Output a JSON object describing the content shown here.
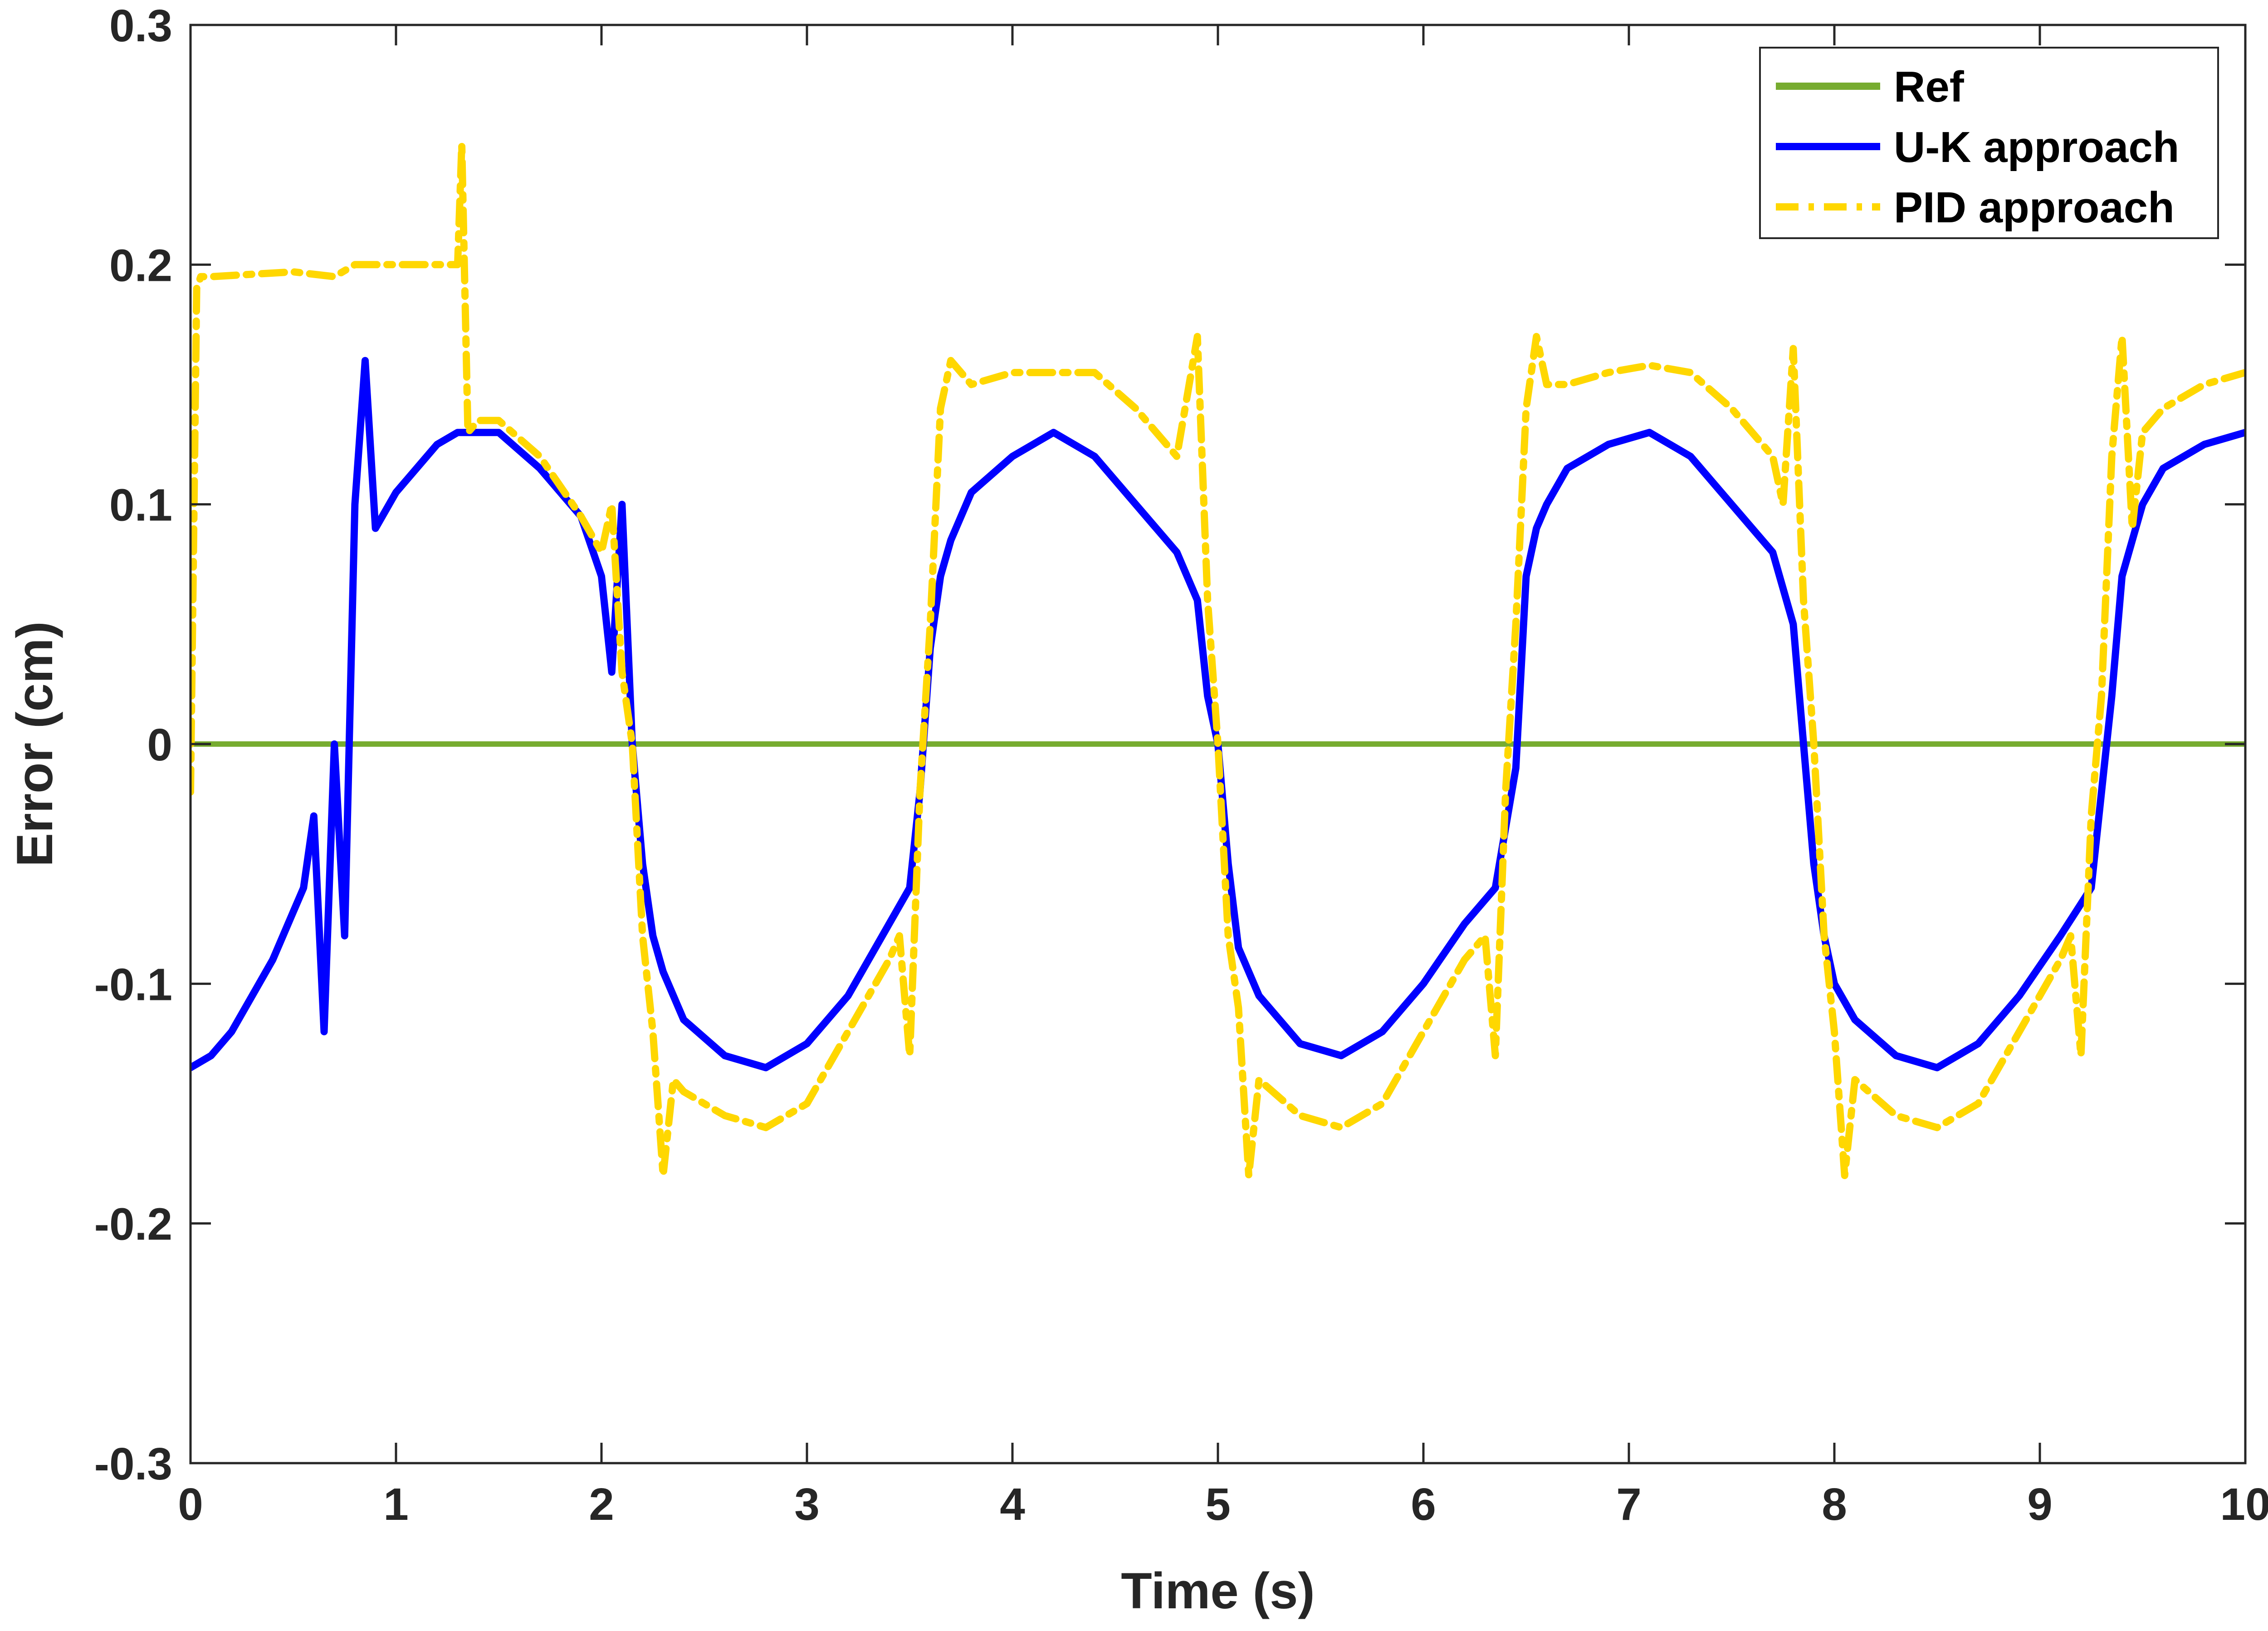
{
  "chart_data": {
    "type": "line",
    "title": "",
    "xlabel": "Time (s)",
    "ylabel": "Error (cm)",
    "xlim": [
      0,
      10
    ],
    "ylim": [
      -0.3,
      0.3
    ],
    "xticks": [
      0,
      1,
      2,
      3,
      4,
      5,
      6,
      7,
      8,
      9,
      10
    ],
    "yticks": [
      -0.3,
      -0.2,
      -0.1,
      0,
      0.1,
      0.2,
      0.3
    ],
    "xtick_labels": [
      "0",
      "1",
      "2",
      "3",
      "4",
      "5",
      "6",
      "7",
      "8",
      "9",
      "10"
    ],
    "ytick_labels": [
      "-0.3",
      "-0.2",
      "-0.1",
      "0",
      "0.1",
      "0.2",
      "0.3"
    ],
    "grid": false,
    "legend": "top-right",
    "series": [
      {
        "name": "Ref",
        "color": "#77AC30",
        "style": "solid",
        "x": [
          0,
          10
        ],
        "y": [
          0,
          0
        ]
      },
      {
        "name": "U-K approach",
        "color": "#0000FF",
        "style": "solid",
        "x": [
          0,
          0.1,
          0.2,
          0.3,
          0.4,
          0.5,
          0.55,
          0.6,
          0.65,
          0.7,
          0.75,
          0.8,
          0.85,
          0.9,
          1.0,
          1.1,
          1.2,
          1.3,
          1.5,
          1.7,
          1.9,
          2.0,
          2.05,
          2.1,
          2.15,
          2.2,
          2.25,
          2.3,
          2.4,
          2.6,
          2.8,
          3.0,
          3.2,
          3.4,
          3.5,
          3.55,
          3.6,
          3.65,
          3.7,
          3.8,
          4.0,
          4.2,
          4.4,
          4.6,
          4.8,
          4.9,
          4.95,
          5.0,
          5.05,
          5.1,
          5.2,
          5.4,
          5.6,
          5.8,
          6.0,
          6.2,
          6.35,
          6.45,
          6.5,
          6.55,
          6.6,
          6.7,
          6.9,
          7.1,
          7.3,
          7.5,
          7.7,
          7.8,
          7.85,
          7.9,
          7.95,
          8.0,
          8.1,
          8.3,
          8.5,
          8.7,
          8.9,
          9.1,
          9.25,
          9.35,
          9.4,
          9.45,
          9.5,
          9.6,
          9.8,
          10.0
        ],
        "y": [
          -0.135,
          -0.13,
          -0.12,
          -0.105,
          -0.09,
          -0.07,
          -0.06,
          -0.03,
          -0.12,
          0.0,
          -0.08,
          0.1,
          0.16,
          0.09,
          0.105,
          0.115,
          0.125,
          0.13,
          0.13,
          0.115,
          0.095,
          0.07,
          0.03,
          0.1,
          0.0,
          -0.05,
          -0.08,
          -0.095,
          -0.115,
          -0.13,
          -0.135,
          -0.125,
          -0.105,
          -0.075,
          -0.06,
          -0.02,
          0.04,
          0.07,
          0.085,
          0.105,
          0.12,
          0.13,
          0.12,
          0.1,
          0.08,
          0.06,
          0.02,
          0.0,
          -0.05,
          -0.085,
          -0.105,
          -0.125,
          -0.13,
          -0.12,
          -0.1,
          -0.075,
          -0.06,
          -0.01,
          0.07,
          0.09,
          0.1,
          0.115,
          0.125,
          0.13,
          0.12,
          0.1,
          0.08,
          0.05,
          0.0,
          -0.05,
          -0.08,
          -0.1,
          -0.115,
          -0.13,
          -0.135,
          -0.125,
          -0.105,
          -0.08,
          -0.06,
          0.02,
          0.07,
          0.085,
          0.1,
          0.115,
          0.125,
          0.13
        ]
      },
      {
        "name": "PID approach",
        "color": "#FFD700",
        "style": "dashdot",
        "x": [
          0,
          0.03,
          0.05,
          0.1,
          0.5,
          0.7,
          0.8,
          1.0,
          1.3,
          1.32,
          1.35,
          1.4,
          1.5,
          1.7,
          1.9,
          2.0,
          2.05,
          2.1,
          2.15,
          2.2,
          2.25,
          2.3,
          2.35,
          2.4,
          2.6,
          2.8,
          3.0,
          3.2,
          3.4,
          3.45,
          3.5,
          3.55,
          3.6,
          3.65,
          3.7,
          3.8,
          4.0,
          4.2,
          4.4,
          4.6,
          4.8,
          4.9,
          4.95,
          5.0,
          5.05,
          5.1,
          5.15,
          5.2,
          5.4,
          5.6,
          5.8,
          6.0,
          6.2,
          6.3,
          6.35,
          6.4,
          6.45,
          6.5,
          6.55,
          6.6,
          6.7,
          6.9,
          7.1,
          7.3,
          7.5,
          7.7,
          7.75,
          7.8,
          7.85,
          7.9,
          7.95,
          8.0,
          8.05,
          8.1,
          8.3,
          8.5,
          8.7,
          8.9,
          9.1,
          9.15,
          9.2,
          9.25,
          9.3,
          9.35,
          9.4,
          9.45,
          9.5,
          9.6,
          9.8,
          10.0
        ],
        "y": [
          -0.02,
          0.19,
          0.195,
          0.195,
          0.197,
          0.195,
          0.2,
          0.2,
          0.2,
          0.25,
          0.13,
          0.135,
          0.135,
          0.12,
          0.095,
          0.08,
          0.1,
          0.03,
          0.0,
          -0.08,
          -0.12,
          -0.18,
          -0.14,
          -0.145,
          -0.155,
          -0.16,
          -0.15,
          -0.12,
          -0.09,
          -0.08,
          -0.13,
          -0.02,
          0.05,
          0.14,
          0.16,
          0.15,
          0.155,
          0.155,
          0.155,
          0.14,
          0.12,
          0.17,
          0.06,
          0.0,
          -0.08,
          -0.11,
          -0.18,
          -0.14,
          -0.155,
          -0.16,
          -0.15,
          -0.12,
          -0.09,
          -0.08,
          -0.13,
          -0.02,
          0.05,
          0.14,
          0.17,
          0.15,
          0.15,
          0.155,
          0.158,
          0.155,
          0.14,
          0.12,
          0.1,
          0.165,
          0.06,
          0.0,
          -0.08,
          -0.12,
          -0.18,
          -0.14,
          -0.155,
          -0.16,
          -0.15,
          -0.12,
          -0.09,
          -0.08,
          -0.13,
          -0.03,
          0.02,
          0.12,
          0.17,
          0.09,
          0.13,
          0.14,
          0.15,
          0.155
        ]
      }
    ]
  }
}
